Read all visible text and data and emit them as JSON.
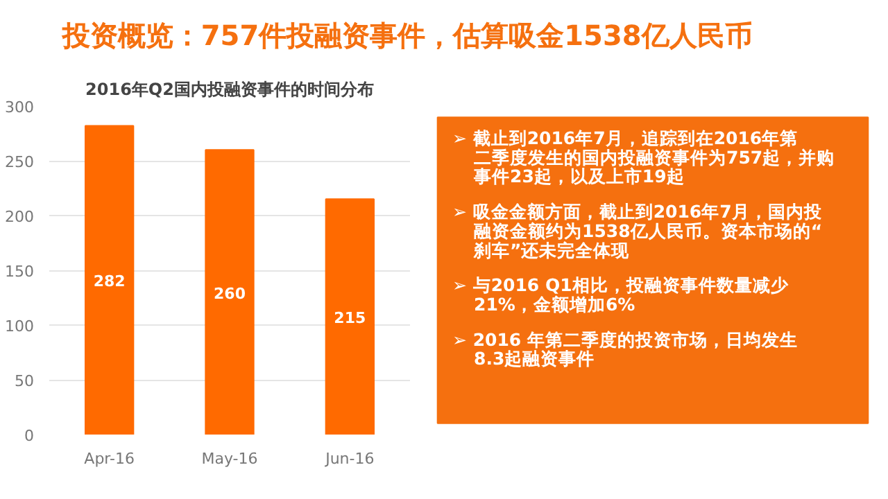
{
  "chart_data": [
    {
      "type": "bar",
      "title": "2016年Q2国内投融资事件的时间分布",
      "categories": [
        "Apr-16",
        "May-16",
        "Jun-16"
      ],
      "values": [
        282,
        260,
        215
      ],
      "color": "#ff6a00",
      "ylim": [
        0,
        300
      ],
      "yticks": [
        0,
        50,
        100,
        150,
        200,
        250,
        300
      ],
      "grid": "y",
      "data_labels": true
    },
    {
      "type": "other",
      "title": "投资概览：757件投融资事件，估算吸金1538亿人民币",
      "annotations": [
        "➢ 截止到2016年7月，追踪到在2016年第二季度发生的国内投融资事件为757起，并购事件23起，以及上市19起",
        "➢ 吸金金额方面，截止到2016年7月，国内投融资金额约为1538亿人民币。资本市场的“刹车”还未完全体现",
        "➢ 与2016 Q1相比，投融资事件数量减少21%，金额增加6%",
        "➢ 2016 年第二季度的投资市场，日均发生8.3起融资事件"
      ]
    }
  ]
}
